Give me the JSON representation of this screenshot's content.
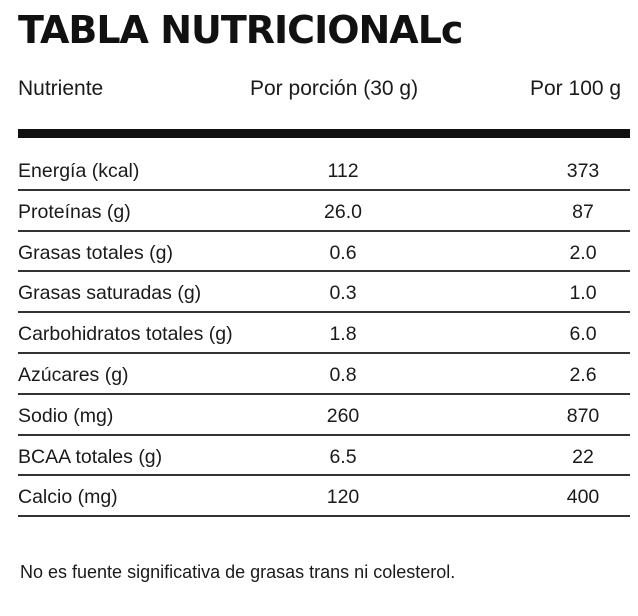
{
  "title": "TABLA NUTRICIONALc",
  "columns": {
    "nutrient": "Nutriente",
    "per_portion": "Por porción (30 g)",
    "per_100": "Por 100 g"
  },
  "rows": [
    {
      "name": "Energía (kcal)",
      "portion": "112",
      "per100": "373"
    },
    {
      "name": "Proteínas (g)",
      "portion": "26.0",
      "per100": "87"
    },
    {
      "name": "Grasas totales (g)",
      "portion": "0.6",
      "per100": "2.0"
    },
    {
      "name": "Grasas saturadas (g)",
      "portion": "0.3",
      "per100": "1.0"
    },
    {
      "name": "Carbohidratos totales (g)",
      "portion": "1.8",
      "per100": "6.0"
    },
    {
      "name": "Azúcares (g)",
      "portion": "0.8",
      "per100": "2.6"
    },
    {
      "name": "Sodio (mg)",
      "portion": "260",
      "per100": "870"
    },
    {
      "name": "BCAA totales (g)",
      "portion": "6.5",
      "per100": "22"
    },
    {
      "name": "Calcio (mg)",
      "portion": "120",
      "per100": "400"
    }
  ],
  "footnote": "No es fuente significativa de grasas trans ni colesterol."
}
